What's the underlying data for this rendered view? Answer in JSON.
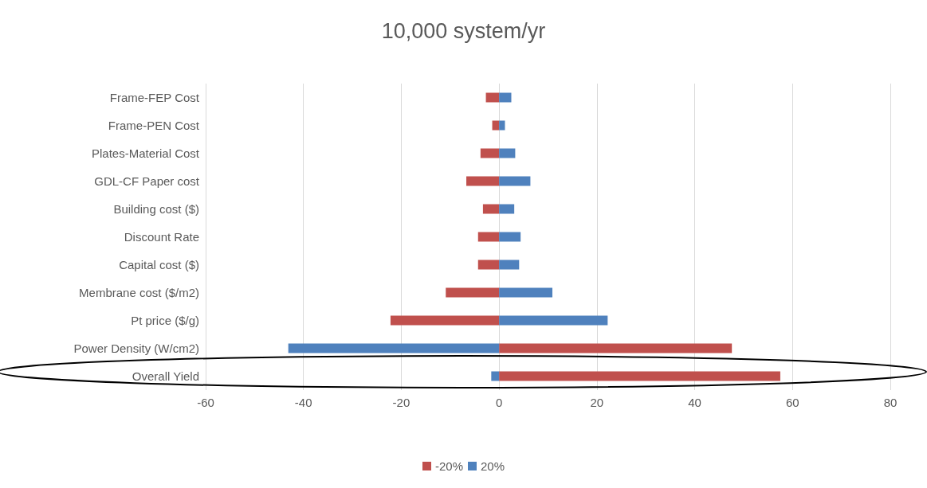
{
  "chart_data": {
    "type": "bar",
    "orientation": "horizontal",
    "title": "10,000 system/yr",
    "categories": [
      "Frame-FEP Cost",
      "Frame-PEN Cost",
      "Plates-Material Cost",
      "GDL-CF Paper cost",
      "Building cost ($)",
      "Discount Rate",
      "Capital cost ($)",
      "Membrane cost ($/m2)",
      "Pt price ($/g)",
      "Power Density (W/cm2)",
      "Overall Yield"
    ],
    "series": [
      {
        "name": "-20%",
        "color": "#c0504d",
        "values": [
          -2.7,
          -1.4,
          -3.8,
          -6.7,
          -3.3,
          -4.3,
          -4.3,
          -10.9,
          -22.2,
          47.6,
          57.5
        ]
      },
      {
        "name": "20%",
        "color": "#4f81bd",
        "values": [
          2.5,
          1.2,
          3.3,
          6.4,
          3.1,
          4.4,
          4.1,
          10.9,
          22.2,
          -43.1,
          -1.6
        ]
      }
    ],
    "stacked": true,
    "xlim": [
      -60,
      80
    ],
    "xticks": [
      -60,
      -40,
      -20,
      0,
      20,
      40,
      60,
      80
    ],
    "grid": "x",
    "legend": "bottom"
  }
}
